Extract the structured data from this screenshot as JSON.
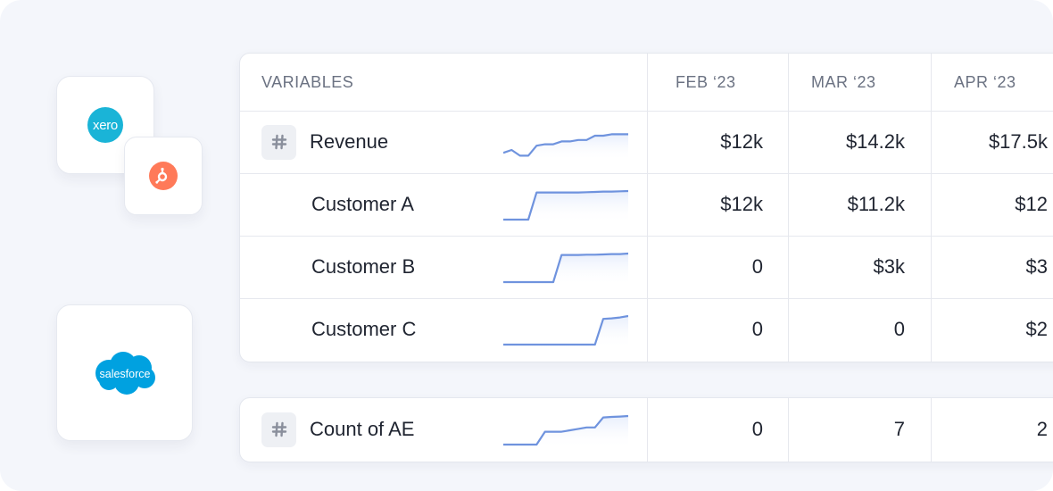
{
  "integrations": [
    {
      "name": "xero",
      "label": "xero"
    },
    {
      "name": "hubspot",
      "label": ""
    },
    {
      "name": "salesforce",
      "label": "salesforce"
    }
  ],
  "table": {
    "columns": [
      "VARIABLES",
      "FEB ‘23",
      "MAR ‘23",
      "APR ‘23"
    ],
    "rows": [
      {
        "label": "Revenue",
        "values": [
          "$12k",
          "$14.2k",
          "$17.5k"
        ],
        "trend": [
          0.15,
          0.25,
          0.05,
          0.05,
          0.4,
          0.45,
          0.45,
          0.55,
          0.55,
          0.6,
          0.6,
          0.75,
          0.75,
          0.8,
          0.8,
          0.8
        ]
      },
      {
        "label": "Customer A",
        "values": [
          "$12k",
          "$11.2k",
          "$12"
        ],
        "trend": [
          0.0,
          0.0,
          0.0,
          0.0,
          0.95,
          0.95,
          0.95,
          0.95,
          0.95,
          0.95,
          0.96,
          0.97,
          0.98,
          0.98,
          0.99,
          1.0
        ]
      },
      {
        "label": "Customer B",
        "values": [
          "0",
          "$3k",
          "$3"
        ],
        "trend": [
          0.0,
          0.0,
          0.0,
          0.0,
          0.0,
          0.0,
          0.0,
          0.95,
          0.95,
          0.95,
          0.96,
          0.96,
          0.97,
          0.98,
          0.98,
          1.0
        ]
      },
      {
        "label": "Customer C",
        "values": [
          "0",
          "0",
          "$2"
        ],
        "trend": [
          0.0,
          0.0,
          0.0,
          0.0,
          0.0,
          0.0,
          0.0,
          0.0,
          0.0,
          0.0,
          0.0,
          0.0,
          0.9,
          0.92,
          0.95,
          1.0
        ]
      }
    ],
    "footer_row": {
      "label": "Count of AE",
      "values": [
        "0",
        "7",
        "2"
      ],
      "trend": [
        0.0,
        0.0,
        0.0,
        0.0,
        0.0,
        0.45,
        0.45,
        0.45,
        0.5,
        0.55,
        0.6,
        0.6,
        0.95,
        0.97,
        0.98,
        1.0
      ]
    }
  },
  "colors": {
    "accent": "#6f93de",
    "fill": "#e7eefc",
    "text": "#1f2430",
    "muted": "#6b7282"
  }
}
